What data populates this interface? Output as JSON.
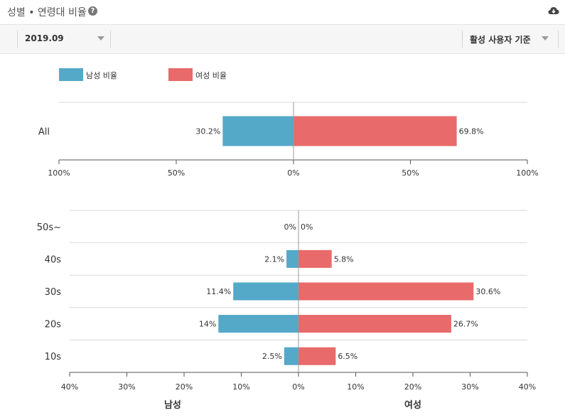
{
  "header": {
    "title": "성별 • 연령대 비율",
    "help_icon": "question-circle-icon",
    "download_icon": "cloud-download-icon"
  },
  "toolbar": {
    "period": "2019.09",
    "basis": "활성 사용자 기준"
  },
  "legend": [
    {
      "label": "남성 비율",
      "color": "#54a8c8"
    },
    {
      "label": "여성 비율",
      "color": "#e86a6a"
    }
  ],
  "chart_data": [
    {
      "type": "bar",
      "orientation": "horizontal-diverging",
      "categories": [
        "All"
      ],
      "series": [
        {
          "name": "남성 비율",
          "values": [
            30.2
          ],
          "labels": [
            "30.2%"
          ]
        },
        {
          "name": "여성 비율",
          "values": [
            69.8
          ],
          "labels": [
            "69.8%"
          ]
        }
      ],
      "xlim": [
        -100,
        100
      ],
      "xticks": [
        "100%",
        "50%",
        "0%",
        "50%",
        "100%"
      ]
    },
    {
      "type": "bar",
      "orientation": "horizontal-diverging",
      "categories": [
        "50s~",
        "40s",
        "30s",
        "20s",
        "10s"
      ],
      "series": [
        {
          "name": "남성 비율",
          "values": [
            0,
            2.1,
            11.4,
            14,
            2.5
          ],
          "labels": [
            "0%",
            "2.1%",
            "11.4%",
            "14%",
            "2.5%"
          ]
        },
        {
          "name": "여성 비율",
          "values": [
            0,
            5.8,
            30.6,
            26.7,
            6.5
          ],
          "labels": [
            "0%",
            "5.8%",
            "30.6%",
            "26.7%",
            "6.5%"
          ]
        }
      ],
      "xlim": [
        -40,
        40
      ],
      "xticks": [
        "40%",
        "30%",
        "20%",
        "10%",
        "0%",
        "10%",
        "20%",
        "30%",
        "40%"
      ],
      "left_axis_label": "남성",
      "right_axis_label": "여성"
    }
  ]
}
